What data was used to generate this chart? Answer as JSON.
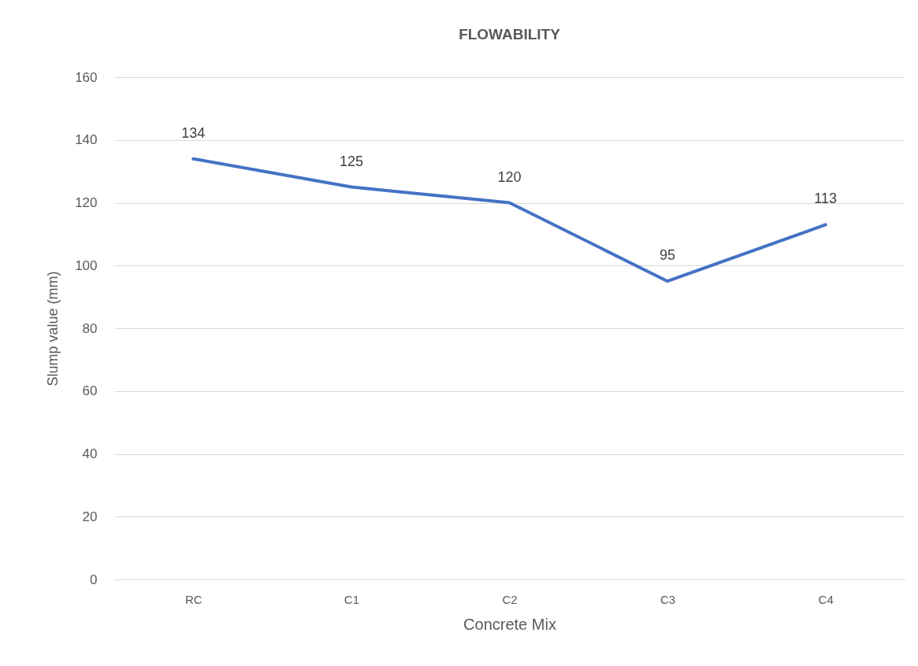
{
  "chart_data": {
    "type": "line",
    "title": "FLOWABILITY",
    "xlabel": "Concrete Mix",
    "ylabel": "Slump value (mm)",
    "categories": [
      "RC",
      "C1",
      "C2",
      "C3",
      "C4"
    ],
    "series": [
      {
        "color": "#4472c4",
        "values": [
          134,
          125,
          120,
          95,
          113
        ]
      }
    ],
    "ylim": [
      0,
      160
    ],
    "yticks": [
      0,
      20,
      40,
      60,
      80,
      100,
      120,
      140,
      160
    ],
    "grid": "y",
    "data_labels": true,
    "marker": "none",
    "line_style": "solid"
  }
}
